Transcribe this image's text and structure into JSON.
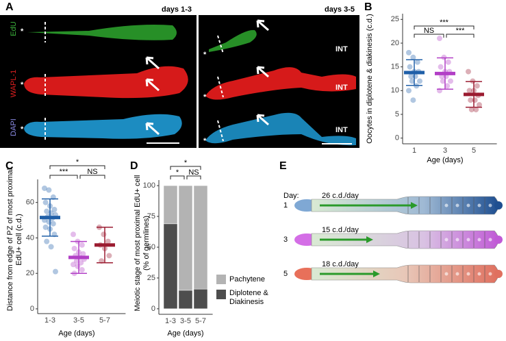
{
  "panel_labels": [
    "A",
    "B",
    "C",
    "D",
    "E"
  ],
  "panel_a": {
    "columns": [
      "days 1-3",
      "days 3-5"
    ],
    "channels": [
      "EdU",
      "WAPL-1",
      "DAPI"
    ],
    "intestine_labels": [
      "INT",
      "INT",
      "INT"
    ],
    "asterisks": [
      "*",
      "*",
      "*",
      "*",
      "*",
      "*"
    ]
  },
  "chart_data": [
    {
      "type": "dot",
      "ylabel": "Oocytes in diplotene & diakinesis (c.d.)",
      "xlabel": "Age (days)",
      "categories": [
        "1",
        "3",
        "5"
      ],
      "means": [
        13.8,
        13.6,
        9.2
      ],
      "sd": [
        2.7,
        3.3,
        2.7
      ],
      "points": [
        [
          18,
          17,
          16,
          15,
          14,
          14,
          13,
          13,
          12,
          12,
          11,
          10,
          8
        ],
        [
          21,
          17,
          16,
          15,
          14,
          14,
          13,
          13,
          12,
          12,
          11,
          10
        ],
        [
          14,
          12,
          11,
          10,
          10,
          9,
          8,
          8,
          7,
          6,
          6
        ]
      ],
      "colors": [
        "#1f5fa8",
        "#b23fc6",
        "#9b1b30"
      ],
      "ylim": [
        -1.2,
        26.2
      ],
      "yticks": [
        0,
        5,
        10,
        15,
        20,
        25
      ],
      "significance": [
        "NS",
        "***",
        "***"
      ]
    },
    {
      "type": "dot",
      "ylabel": "Distance from edge of PZ of most proximal EdU+ cell (c.d.)",
      "xlabel": "Age (days)",
      "categories": [
        "1-3",
        "3-5",
        "5-7"
      ],
      "means": [
        51.5,
        29,
        36
      ],
      "sd": [
        10.5,
        9,
        10
      ],
      "points": [
        [
          68,
          67,
          63,
          60,
          58,
          56,
          55,
          54,
          53,
          52,
          51,
          50,
          49,
          48,
          46,
          45,
          42,
          38,
          35,
          21
        ],
        [
          42,
          38,
          36,
          34,
          32,
          31,
          30,
          29,
          28,
          27,
          26,
          25,
          24,
          22,
          20
        ],
        [
          46,
          42,
          38,
          36,
          34,
          30,
          27
        ]
      ],
      "colors": [
        "#1f5fa8",
        "#b23fc6",
        "#9b1b30"
      ],
      "ylim": [
        -2.7,
        73
      ],
      "yticks": [
        0,
        20,
        40,
        60
      ],
      "significance": [
        "***",
        "NS",
        "*"
      ]
    },
    {
      "type": "stacked_bar",
      "ylabel": "Meiotic stage of most proximal EdU+ cell (% of germlines)",
      "xlabel": "Age (days)",
      "categories": [
        "1-3",
        "3-5",
        "5-7"
      ],
      "series": [
        {
          "name": "Diplotene & Diakinesis",
          "color": "#4d4d4d",
          "values": [
            69,
            15,
            16
          ]
        },
        {
          "name": "Pachytene",
          "color": "#b3b3b3",
          "values": [
            31,
            85,
            84
          ]
        }
      ],
      "ylim": [
        -4.5,
        104.5
      ],
      "yticks": [
        0,
        25,
        50,
        75,
        100
      ],
      "significance": [
        "*",
        "NS",
        "*"
      ]
    }
  ],
  "panel_e": {
    "day_label": "Day:",
    "rows": [
      {
        "day": "1",
        "rate": "26 c.d./day"
      },
      {
        "day": "3",
        "rate": "15 c.d./day"
      },
      {
        "day": "5",
        "rate": "18 c.d./day"
      }
    ]
  }
}
